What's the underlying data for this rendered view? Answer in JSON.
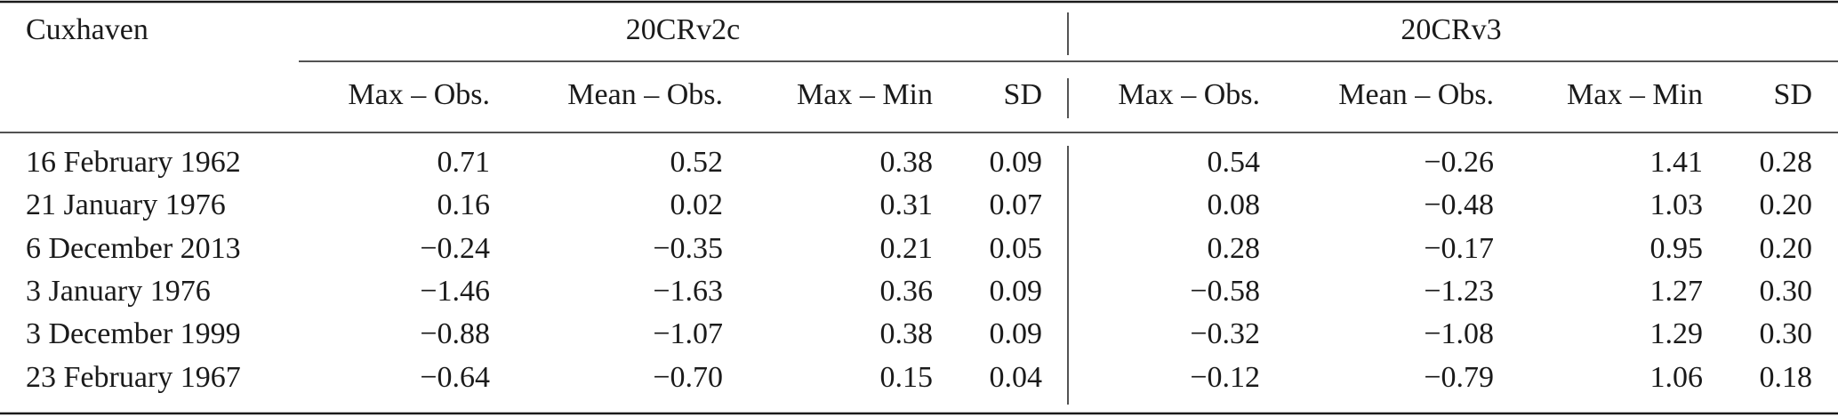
{
  "table": {
    "title": "Cuxhaven",
    "groups": [
      "20CRv2c",
      "20CRv3"
    ],
    "columns": [
      "Max – Obs.",
      "Mean – Obs.",
      "Max – Min",
      "SD",
      "Max – Obs.",
      "Mean – Obs.",
      "Max – Min",
      "SD"
    ],
    "rows": [
      [
        "16 February 1962",
        "0.71",
        "0.52",
        "0.38",
        "0.09",
        "0.54",
        "−0.26",
        "1.41",
        "0.28"
      ],
      [
        "21 January 1976",
        "0.16",
        "0.02",
        "0.31",
        "0.07",
        "0.08",
        "−0.48",
        "1.03",
        "0.20"
      ],
      [
        "6 December 2013",
        "−0.24",
        "−0.35",
        "0.21",
        "0.05",
        "0.28",
        "−0.17",
        "0.95",
        "0.20"
      ],
      [
        "3 January 1976",
        "−1.46",
        "−1.63",
        "0.36",
        "0.09",
        "−0.58",
        "−1.23",
        "1.27",
        "0.30"
      ],
      [
        "3 December 1999",
        "−0.88",
        "−1.07",
        "0.38",
        "0.09",
        "−0.32",
        "−1.08",
        "1.29",
        "0.30"
      ],
      [
        "23 February 1967",
        "−0.64",
        "−0.70",
        "0.15",
        "0.04",
        "−0.12",
        "−0.79",
        "1.06",
        "0.18"
      ]
    ]
  }
}
